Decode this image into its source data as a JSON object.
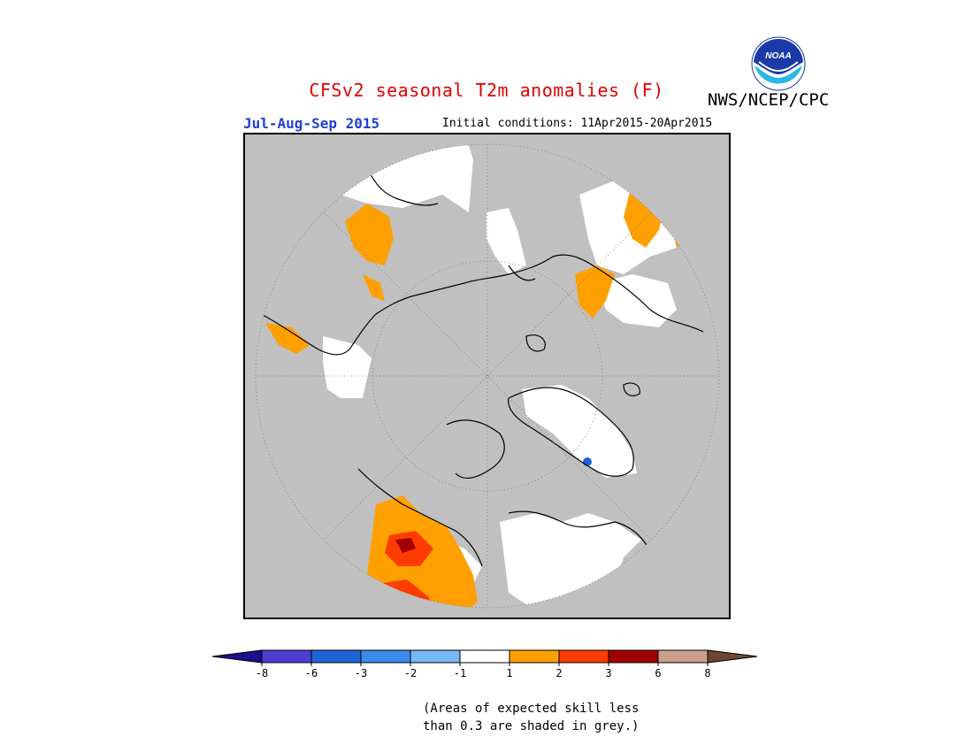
{
  "header": {
    "title": "CFSv2 seasonal T2m anomalies (F)",
    "organization": "NWS/NCEP/CPC",
    "season": "Jul-Aug-Sep 2015",
    "initial_conditions": "Initial conditions: 11Apr2015-20Apr2015"
  },
  "logo": {
    "text": "NOAA",
    "icon": "noaa-logo-icon"
  },
  "colorbar": {
    "ticks": [
      "-8",
      "-6",
      "-3",
      "-2",
      "-1",
      "1",
      "2",
      "3",
      "6",
      "8"
    ],
    "colors": {
      "lt_-8": "#1c0f8c",
      "-8_-6": "#4b3fd0",
      "-6_-3": "#1f64d6",
      "-3_-2": "#3c8cec",
      "-2_-1": "#78b8f4",
      "-1_1": "#ffffff",
      "1_2": "#ffa000",
      "2_3": "#ff3c00",
      "3_6": "#a00000",
      "6_8": "#c8a08c",
      "gt_8": "#6e4632"
    }
  },
  "map": {
    "projection": "north polar stereographic",
    "background_skill_grey": "#c0c0c0"
  },
  "footnote": {
    "line1": "(Areas of expected skill less",
    "line2": "than 0.3 are shaded in grey.)"
  }
}
